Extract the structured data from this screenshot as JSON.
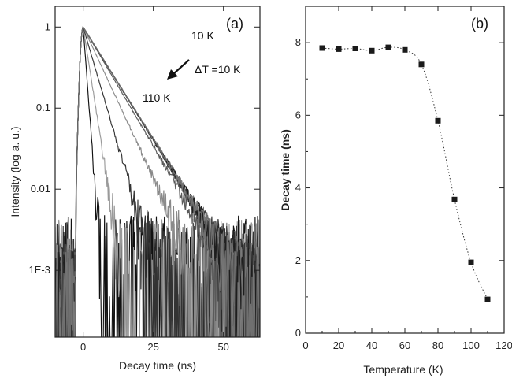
{
  "chart_data": [
    {
      "type": "line",
      "panel_label": "(a)",
      "xlabel": "Decay time (ns)",
      "ylabel": "Intensity (log a. u.)",
      "xlim": [
        -10,
        63
      ],
      "ylim": [
        0.00015,
        1.8
      ],
      "yscale": "log",
      "xticks": [
        0,
        25,
        50
      ],
      "xtick_labels": [
        "0",
        "25",
        "50"
      ],
      "yticks": [
        0.001,
        0.01,
        0.1,
        1
      ],
      "ytick_labels": [
        "1E-3",
        "0.01",
        "0.1",
        "1"
      ],
      "annotations": {
        "top": "10 K",
        "step": "ΔT =10 K",
        "bottom": "110 K"
      },
      "series": [
        {
          "temperature_K": 10,
          "decay_ns": 7.85,
          "color": "#707070"
        },
        {
          "temperature_K": 20,
          "decay_ns": 7.82,
          "color": "#1e1e1e"
        },
        {
          "temperature_K": 30,
          "decay_ns": 7.84,
          "color": "#7a7a7a"
        },
        {
          "temperature_K": 40,
          "decay_ns": 7.78,
          "color": "#3a3a3a"
        },
        {
          "temperature_K": 50,
          "decay_ns": 7.87,
          "color": "#686868"
        },
        {
          "temperature_K": 60,
          "decay_ns": 7.8,
          "color": "#2a2a2a"
        },
        {
          "temperature_K": 70,
          "decay_ns": 7.4,
          "color": "#5a5a5a"
        },
        {
          "temperature_K": 80,
          "decay_ns": 5.85,
          "color": "#8a8a8a"
        },
        {
          "temperature_K": 90,
          "decay_ns": 3.68,
          "color": "#333333"
        },
        {
          "temperature_K": 100,
          "decay_ns": 1.95,
          "color": "#9a9a9a"
        },
        {
          "temperature_K": 110,
          "decay_ns": 0.93,
          "color": "#111111"
        }
      ]
    },
    {
      "type": "scatter",
      "panel_label": "(b)",
      "xlabel": "Temperature (K)",
      "ylabel": "Decay time (ns)",
      "xlim": [
        0,
        120
      ],
      "ylim": [
        0,
        9
      ],
      "xticks": [
        0,
        20,
        40,
        60,
        80,
        100,
        120
      ],
      "xtick_labels": [
        "0",
        "20",
        "40",
        "60",
        "80",
        "100",
        "120"
      ],
      "yticks": [
        0,
        2,
        4,
        6,
        8
      ],
      "ytick_labels": [
        "0",
        "2",
        "4",
        "6",
        "8"
      ],
      "x": [
        10,
        20,
        30,
        40,
        50,
        60,
        70,
        80,
        90,
        100,
        110
      ],
      "y": [
        7.85,
        7.82,
        7.84,
        7.78,
        7.87,
        7.8,
        7.4,
        5.85,
        3.68,
        1.95,
        0.93
      ],
      "fit_line": "dotted"
    }
  ]
}
